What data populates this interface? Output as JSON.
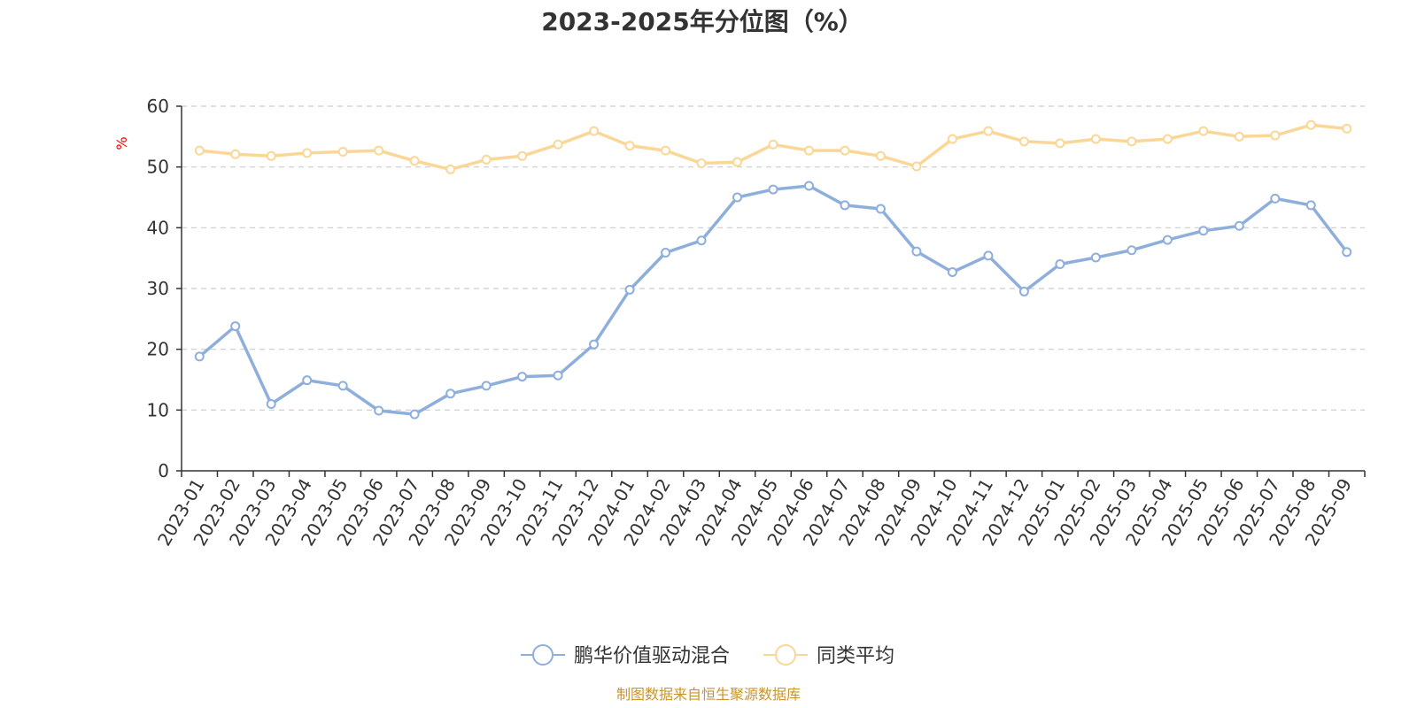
{
  "colors": {
    "series_1": "#8eaedb",
    "series_2": "#fad797",
    "unit": "#ff0000",
    "source": "#c8952a",
    "grid": "#cccccc",
    "axis": "#333333"
  },
  "chart_data": {
    "type": "line",
    "title": "2023-2025年分位图（%）",
    "ylabel": "%",
    "ylim": [
      0,
      60
    ],
    "yticks": [
      0,
      10,
      20,
      30,
      40,
      50,
      60
    ],
    "grid": "horizontal-dashed",
    "legend_position": "bottom-center",
    "x": [
      "2023-01",
      "2023-02",
      "2023-03",
      "2023-04",
      "2023-05",
      "2023-06",
      "2023-07",
      "2023-08",
      "2023-09",
      "2023-10",
      "2023-11",
      "2023-12",
      "2024-01",
      "2024-02",
      "2024-03",
      "2024-04",
      "2024-05",
      "2024-06",
      "2024-07",
      "2024-08",
      "2024-09",
      "2024-10",
      "2024-11",
      "2024-12",
      "2025-01",
      "2025-02",
      "2025-03",
      "2025-04",
      "2025-05",
      "2025-06",
      "2025-07",
      "2025-08",
      "2025-09"
    ],
    "series": [
      {
        "name": "鹏华价值驱动混合",
        "values": [
          18.8,
          23.8,
          11.0,
          14.9,
          14.0,
          9.9,
          9.3,
          12.7,
          14.0,
          15.5,
          15.7,
          20.8,
          29.8,
          35.9,
          37.9,
          45.0,
          46.3,
          46.9,
          43.7,
          43.1,
          36.1,
          32.7,
          35.4,
          29.5,
          34.0,
          35.1,
          36.3,
          38.0,
          39.5,
          40.3,
          44.8,
          43.7,
          36.0
        ]
      },
      {
        "name": "同类平均",
        "values": [
          52.7,
          52.1,
          51.8,
          52.3,
          52.5,
          52.7,
          51.0,
          49.6,
          51.2,
          51.8,
          53.7,
          55.9,
          53.5,
          52.7,
          50.6,
          50.8,
          53.7,
          52.7,
          52.7,
          51.8,
          50.1,
          54.6,
          55.9,
          54.2,
          53.9,
          54.6,
          54.2,
          54.6,
          55.9,
          55.0,
          55.2,
          56.9,
          56.3
        ]
      }
    ]
  },
  "footer": {
    "source": "制图数据来自恒生聚源数据库"
  }
}
